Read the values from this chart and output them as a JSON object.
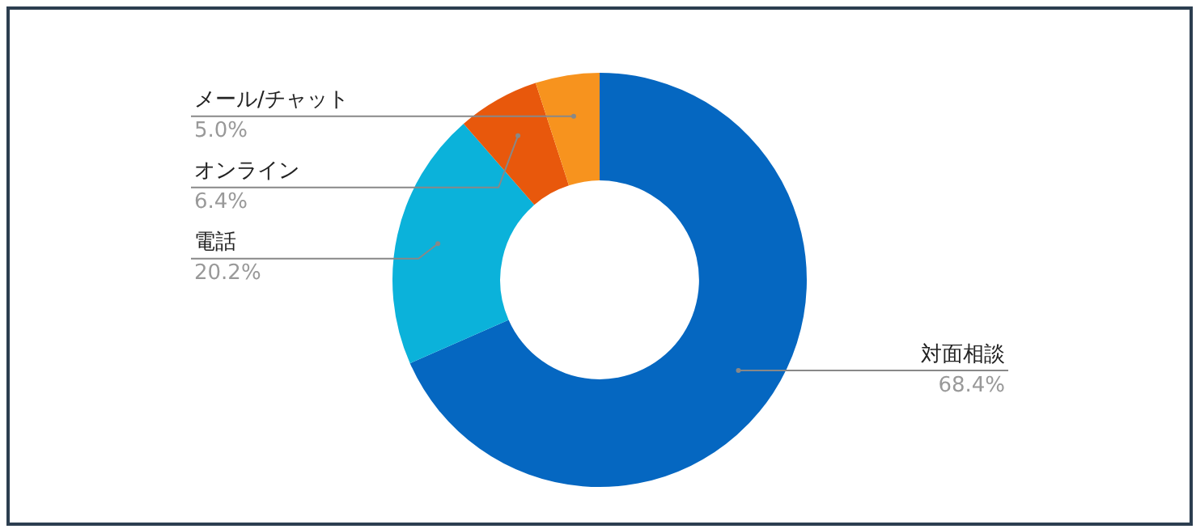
{
  "chart_data": {
    "type": "donut",
    "categories": [
      "対面相談",
      "電話",
      "オンライン",
      "メール/チャット"
    ],
    "values": [
      68.4,
      20.2,
      6.4,
      5.0
    ],
    "value_labels": [
      "68.4%",
      "20.2%",
      "6.4%",
      "5.0%"
    ],
    "colors": [
      "#0567c1",
      "#0bb2da",
      "#e8580c",
      "#f7931e"
    ],
    "legend": false
  }
}
